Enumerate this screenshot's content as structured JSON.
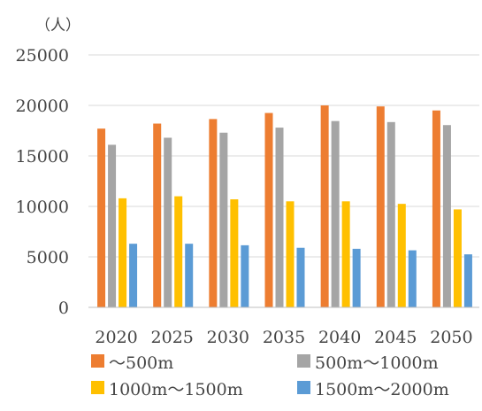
{
  "chart_data": {
    "type": "bar",
    "unit_label": "（人）",
    "categories": [
      "2020",
      "2025",
      "2030",
      "2035",
      "2040",
      "2045",
      "2050"
    ],
    "series": [
      {
        "name": "～500m",
        "color": "#ED7D31",
        "values": [
          17700,
          18200,
          18650,
          19250,
          20000,
          19900,
          19500
        ]
      },
      {
        "name": "500m～1000m",
        "color": "#A5A5A5",
        "values": [
          16100,
          16800,
          17300,
          17800,
          18450,
          18350,
          18050
        ]
      },
      {
        "name": "1000m～1500m",
        "color": "#FFC000",
        "values": [
          10800,
          11000,
          10700,
          10500,
          10500,
          10250,
          9700
        ]
      },
      {
        "name": "1500m～2000m",
        "color": "#5B9BD5",
        "values": [
          6300,
          6300,
          6150,
          5900,
          5800,
          5650,
          5250
        ]
      }
    ],
    "ylim": [
      0,
      25000
    ],
    "yticks": [
      "0",
      "5000",
      "10000",
      "15000",
      "20000",
      "25000"
    ],
    "grid": true,
    "legend_position": "bottom"
  }
}
